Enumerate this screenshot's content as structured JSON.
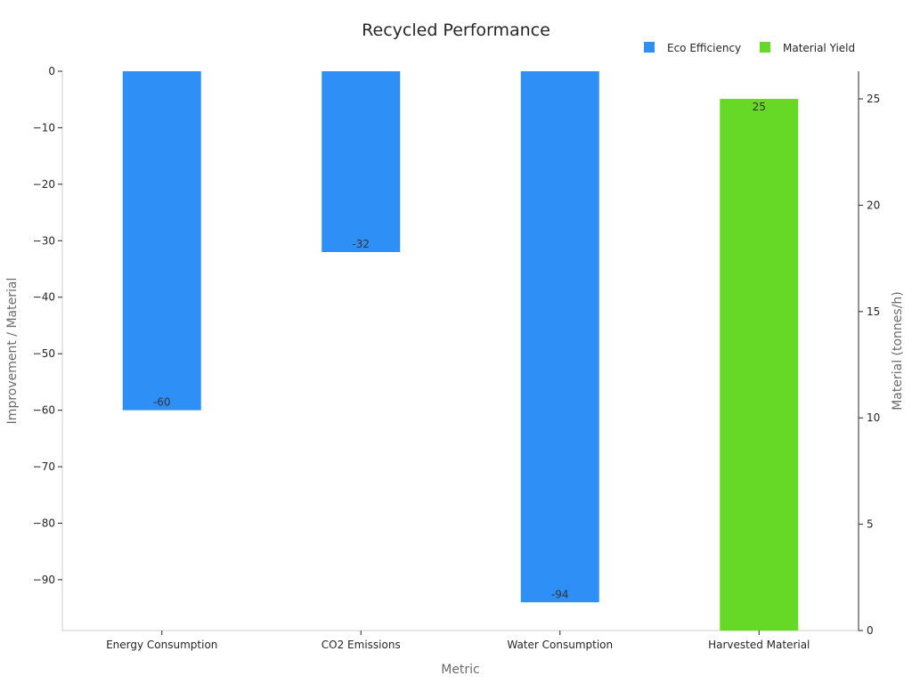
{
  "chart_data": {
    "type": "bar",
    "title": "Recycled Performance",
    "xlabel": "Metric",
    "ylabel": "Improvement / Material",
    "y2label": "Material (tonnes/h)",
    "categories": [
      "Energy Consumption",
      "CO2 Emissions",
      "Water Consumption",
      "Harvested Material"
    ],
    "series": [
      {
        "name": "Eco Efficiency",
        "axis": "left",
        "color": "#2e8ff7",
        "values": [
          -60,
          -32,
          -94,
          null
        ],
        "labels": [
          "-60",
          "-32",
          "-94",
          ""
        ]
      },
      {
        "name": "Material Yield",
        "axis": "right",
        "color": "#66d926",
        "values": [
          null,
          null,
          null,
          25
        ],
        "labels": [
          "",
          "",
          "",
          "25"
        ]
      }
    ],
    "ylim": [
      -99,
      0
    ],
    "yticks": [
      0,
      -10,
      -20,
      -30,
      -40,
      -50,
      -60,
      -70,
      -80,
      -90
    ],
    "ytick_labels": [
      "0",
      "−10",
      "−20",
      "−30",
      "−40",
      "−50",
      "−60",
      "−70",
      "−80",
      "−90"
    ],
    "y2lim": [
      0,
      26.3
    ],
    "y2ticks": [
      0,
      5,
      10,
      15,
      20,
      25
    ],
    "y2tick_labels": [
      "0",
      "5",
      "10",
      "15",
      "20",
      "25"
    ],
    "legend_position": "top-right",
    "grid": false
  }
}
